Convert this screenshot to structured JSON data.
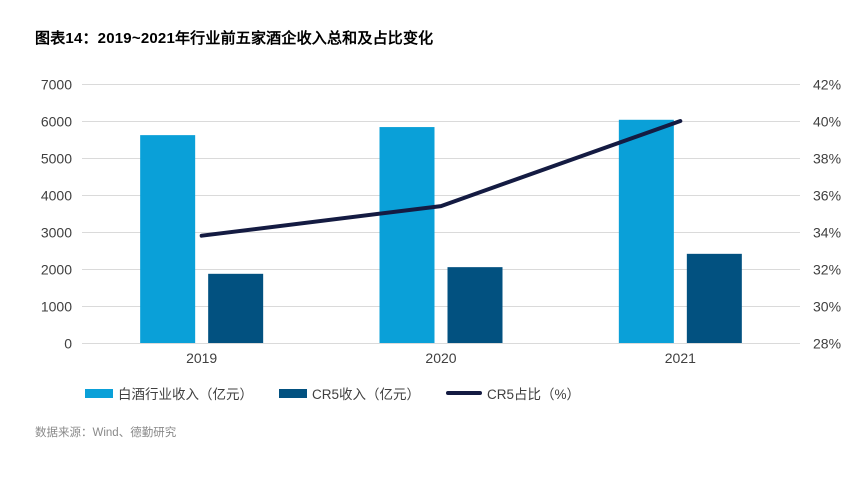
{
  "title": "图表14：2019~2021年行业前五家酒企收入总和及占比变化",
  "source": "数据来源：Wind、德勤研究",
  "colors": {
    "bar_light": "#0AA0D8",
    "bar_dark": "#025180",
    "line": "#141B42",
    "grid": "#DADADA",
    "axis_text": "#404040",
    "title_text": "#000000",
    "source_text": "#8A8A8A"
  },
  "chart_data": {
    "type": "bar+line",
    "title": "图表14：2019~2021年行业前五家酒企收入总和及占比变化",
    "categories": [
      "2019",
      "2020",
      "2021"
    ],
    "series": [
      {
        "name": "白酒行业收入（亿元）",
        "type": "bar",
        "axis": "left",
        "color_key": "bar_light",
        "values": [
          5618,
          5836,
          6033
        ]
      },
      {
        "name": "CR5收入（亿元）",
        "type": "bar",
        "axis": "left",
        "color_key": "bar_dark",
        "values": [
          1870,
          2050,
          2410
        ]
      },
      {
        "name": "CR5占比（%）",
        "type": "line",
        "axis": "right",
        "color_key": "line",
        "values": [
          33.8,
          35.4,
          40.0
        ]
      }
    ],
    "left_axis": {
      "min": 0,
      "max": 7000,
      "step": 1000,
      "ticks": [
        "0",
        "1000",
        "2000",
        "3000",
        "4000",
        "5000",
        "6000",
        "7000"
      ]
    },
    "right_axis": {
      "min": 28,
      "max": 42,
      "step": 2,
      "ticks": [
        "28%",
        "30%",
        "32%",
        "34%",
        "36%",
        "38%",
        "40%",
        "42%"
      ]
    },
    "grid": true,
    "legend_position": "bottom"
  }
}
